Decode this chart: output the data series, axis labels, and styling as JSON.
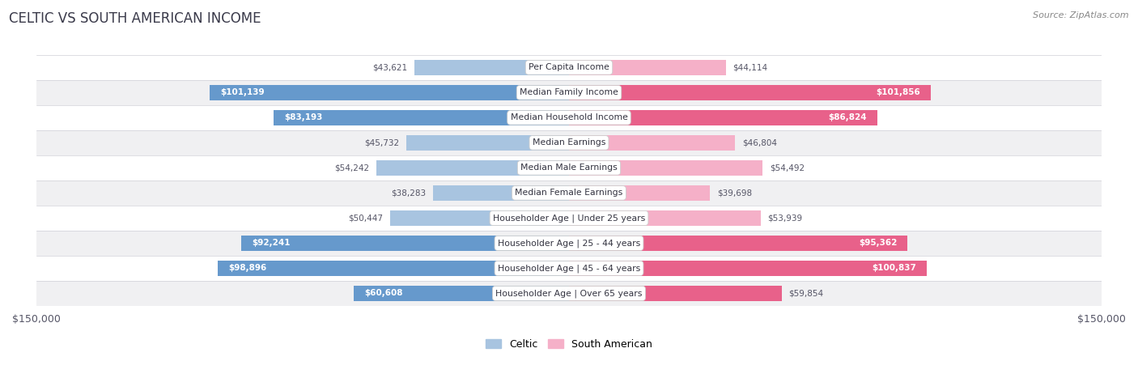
{
  "title": "CELTIC VS SOUTH AMERICAN INCOME",
  "source": "Source: ZipAtlas.com",
  "categories": [
    "Per Capita Income",
    "Median Family Income",
    "Median Household Income",
    "Median Earnings",
    "Median Male Earnings",
    "Median Female Earnings",
    "Householder Age | Under 25 years",
    "Householder Age | 25 - 44 years",
    "Householder Age | 45 - 64 years",
    "Householder Age | Over 65 years"
  ],
  "celtic_values": [
    43621,
    101139,
    83193,
    45732,
    54242,
    38283,
    50447,
    92241,
    98896,
    60608
  ],
  "south_american_values": [
    44114,
    101856,
    86824,
    46804,
    54492,
    39698,
    53939,
    95362,
    100837,
    59854
  ],
  "celtic_labels": [
    "$43,621",
    "$101,139",
    "$83,193",
    "$45,732",
    "$54,242",
    "$38,283",
    "$50,447",
    "$92,241",
    "$98,896",
    "$60,608"
  ],
  "south_american_labels": [
    "$44,114",
    "$101,856",
    "$86,824",
    "$46,804",
    "$54,492",
    "$39,698",
    "$53,939",
    "$95,362",
    "$100,837",
    "$59,854"
  ],
  "celtic_color_light": "#a8c4e0",
  "celtic_color_dark": "#6699cc",
  "south_american_color_light": "#f5b0c8",
  "south_american_color_dark": "#e8618a",
  "max_value": 150000,
  "row_bg_white": "#ffffff",
  "row_bg_gray": "#f0f0f2",
  "title_color": "#3a3a4a",
  "label_dark_color": "#555566",
  "label_light_color": "#ffffff",
  "inside_threshold": 60000,
  "legend_celtic": "Celtic",
  "legend_sa": "South American"
}
